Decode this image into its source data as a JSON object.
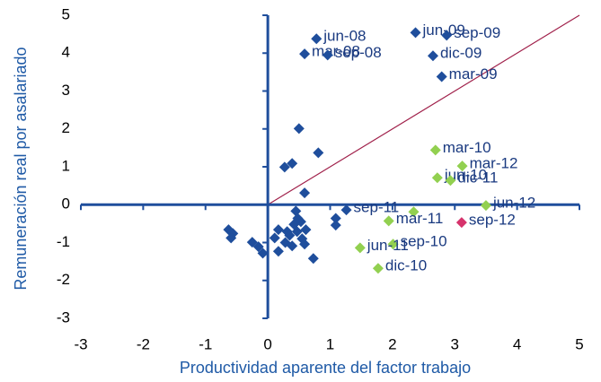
{
  "chart_data": {
    "type": "scatter",
    "xlabel": "Productividad aparente del factor trabajo",
    "ylabel": "Remuneración real por asalariado",
    "xlim": [
      -3,
      5
    ],
    "ylim": [
      -3,
      5
    ],
    "xticks": [
      -3,
      -2,
      -1,
      0,
      1,
      2,
      3,
      4,
      5
    ],
    "yticks": [
      -3,
      -2,
      -1,
      0,
      1,
      2,
      3,
      4,
      5
    ],
    "series": [
      {
        "color": "#1f4e9c",
        "x": [
          0.78,
          0.59,
          0.96,
          2.37,
          2.87,
          2.65,
          2.79,
          0.5,
          0.81,
          0.39,
          0.27,
          0.59,
          1.26,
          1.09,
          1.09,
          0.45,
          0.42,
          0.47,
          0.53,
          0.61,
          0.31,
          0.35,
          0.17,
          0.11,
          0.28,
          0.39,
          0.55,
          0.59,
          0.73,
          0.17,
          -0.08,
          -0.25,
          -0.15,
          -0.56,
          -0.63,
          -0.59,
          0.48
        ],
        "values": [
          4.38,
          3.98,
          3.95,
          4.54,
          4.47,
          3.93,
          3.38,
          2.01,
          1.37,
          1.09,
          0.99,
          0.31,
          -0.14,
          -0.36,
          -0.54,
          -0.17,
          -0.52,
          -0.71,
          -0.45,
          -0.66,
          -0.71,
          -0.81,
          -0.66,
          -0.88,
          -1.0,
          -1.09,
          -0.9,
          -1.04,
          -1.42,
          -1.23,
          -1.28,
          -0.99,
          -1.11,
          -0.76,
          -0.66,
          -0.88,
          -0.36
        ],
        "labels": [
          "jun-08",
          "mar-08",
          "sep-08",
          "jun-09",
          "sep-09",
          "dic-09",
          "mar-09",
          null,
          null,
          null,
          null,
          null,
          "sep-11",
          null,
          null,
          null,
          null,
          null,
          null,
          null,
          null,
          null,
          null,
          null,
          null,
          null,
          null,
          null,
          null,
          null,
          null,
          null,
          null,
          null,
          null,
          null,
          null
        ]
      },
      {
        "color": "#92d050",
        "x": [
          2.69,
          3.12,
          2.72,
          2.93,
          3.5,
          2.34,
          1.94,
          2.01,
          1.48,
          1.77
        ],
        "values": [
          1.44,
          1.02,
          0.71,
          0.64,
          -0.02,
          -0.19,
          -0.43,
          -1.04,
          -1.14,
          -1.68
        ],
        "labels": [
          "mar-10",
          "mar-12",
          "jun-10",
          "dic-11",
          "jun-12",
          null,
          "mar-11",
          "sep-10",
          "jun-11",
          "dic-10"
        ]
      },
      {
        "color": "#d6336c",
        "x": [
          3.11
        ],
        "values": [
          -0.47
        ],
        "labels": [
          "sep-12"
        ]
      }
    ]
  }
}
